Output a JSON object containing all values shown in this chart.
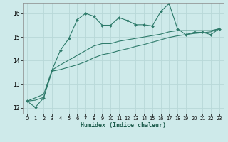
{
  "xlabel": "Humidex (Indice chaleur)",
  "ylabel": "",
  "background_color": "#ceeaea",
  "grid_color": "#b8d8d8",
  "line_color": "#2d7a6a",
  "xlim": [
    -0.5,
    23.5
  ],
  "ylim": [
    11.75,
    16.45
  ],
  "yticks": [
    12,
    13,
    14,
    15,
    16
  ],
  "xticks": [
    0,
    1,
    2,
    3,
    4,
    5,
    6,
    7,
    8,
    9,
    10,
    11,
    12,
    13,
    14,
    15,
    16,
    17,
    18,
    19,
    20,
    21,
    22,
    23
  ],
  "series1_x": [
    0,
    1,
    2,
    3,
    4,
    5,
    6,
    7,
    8,
    9,
    10,
    11,
    12,
    13,
    14,
    15,
    16,
    17,
    18,
    19,
    20,
    21,
    22,
    23
  ],
  "series1_y": [
    12.28,
    12.02,
    12.42,
    13.6,
    14.44,
    14.93,
    15.73,
    16.0,
    15.88,
    15.5,
    15.5,
    15.82,
    15.7,
    15.52,
    15.52,
    15.47,
    16.08,
    16.42,
    15.35,
    15.1,
    15.2,
    15.2,
    15.1,
    15.35
  ],
  "series2_x": [
    0,
    1,
    2,
    3,
    4,
    5,
    6,
    7,
    8,
    9,
    10,
    11,
    12,
    13,
    14,
    15,
    16,
    17,
    18,
    19,
    20,
    21,
    22,
    23
  ],
  "series2_y": [
    12.28,
    12.42,
    12.57,
    13.6,
    13.82,
    14.02,
    14.22,
    14.42,
    14.62,
    14.72,
    14.72,
    14.82,
    14.88,
    14.94,
    15.0,
    15.06,
    15.12,
    15.22,
    15.27,
    15.27,
    15.27,
    15.27,
    15.27,
    15.35
  ],
  "series3_x": [
    0,
    1,
    2,
    3,
    4,
    5,
    6,
    7,
    8,
    9,
    10,
    11,
    12,
    13,
    14,
    15,
    16,
    17,
    18,
    19,
    20,
    21,
    22,
    23
  ],
  "series3_y": [
    12.28,
    12.32,
    12.44,
    13.55,
    13.62,
    13.72,
    13.82,
    13.95,
    14.12,
    14.25,
    14.32,
    14.42,
    14.5,
    14.6,
    14.68,
    14.78,
    14.88,
    14.98,
    15.05,
    15.1,
    15.15,
    15.18,
    15.22,
    15.35
  ]
}
